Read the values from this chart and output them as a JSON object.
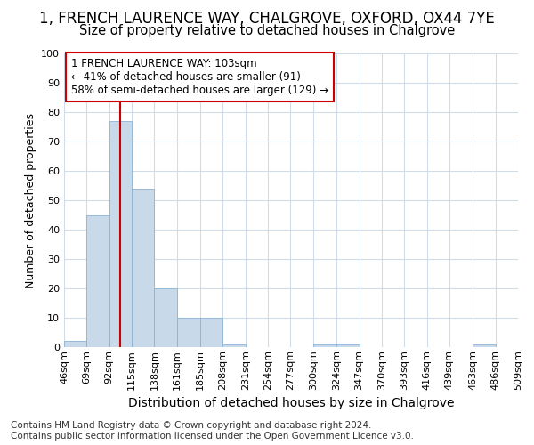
{
  "title": "1, FRENCH LAURENCE WAY, CHALGROVE, OXFORD, OX44 7YE",
  "subtitle": "Size of property relative to detached houses in Chalgrove",
  "xlabel": "Distribution of detached houses by size in Chalgrove",
  "ylabel": "Number of detached properties",
  "footer_line1": "Contains HM Land Registry data © Crown copyright and database right 2024.",
  "footer_line2": "Contains public sector information licensed under the Open Government Licence v3.0.",
  "bin_edges": [
    46,
    69,
    92,
    115,
    138,
    161,
    185,
    208,
    231,
    254,
    277,
    300,
    324,
    347,
    370,
    393,
    416,
    439,
    463,
    486,
    509
  ],
  "bin_labels": [
    "46sqm",
    "69sqm",
    "92sqm",
    "115sqm",
    "138sqm",
    "161sqm",
    "185sqm",
    "208sqm",
    "231sqm",
    "254sqm",
    "277sqm",
    "300sqm",
    "324sqm",
    "347sqm",
    "370sqm",
    "393sqm",
    "416sqm",
    "439sqm",
    "463sqm",
    "486sqm",
    "509sqm"
  ],
  "counts": [
    2,
    45,
    77,
    54,
    20,
    10,
    10,
    1,
    0,
    0,
    0,
    1,
    1,
    0,
    0,
    0,
    0,
    0,
    1,
    0
  ],
  "bar_color": "#c8d9ea",
  "bar_edge_color": "#8ab4d4",
  "grid_color": "#d0dce8",
  "subject_value": 103,
  "red_line_color": "#cc0000",
  "annotation_text": "1 FRENCH LAURENCE WAY: 103sqm\n← 41% of detached houses are smaller (91)\n58% of semi-detached houses are larger (129) →",
  "annotation_box_color": "#cc0000",
  "ylim": [
    0,
    100
  ],
  "yticks": [
    0,
    10,
    20,
    30,
    40,
    50,
    60,
    70,
    80,
    90,
    100
  ],
  "background_color": "#ffffff",
  "title_fontsize": 12,
  "subtitle_fontsize": 10.5,
  "xlabel_fontsize": 10,
  "ylabel_fontsize": 9,
  "tick_fontsize": 8,
  "footer_fontsize": 7.5,
  "annotation_fontsize": 8.5
}
